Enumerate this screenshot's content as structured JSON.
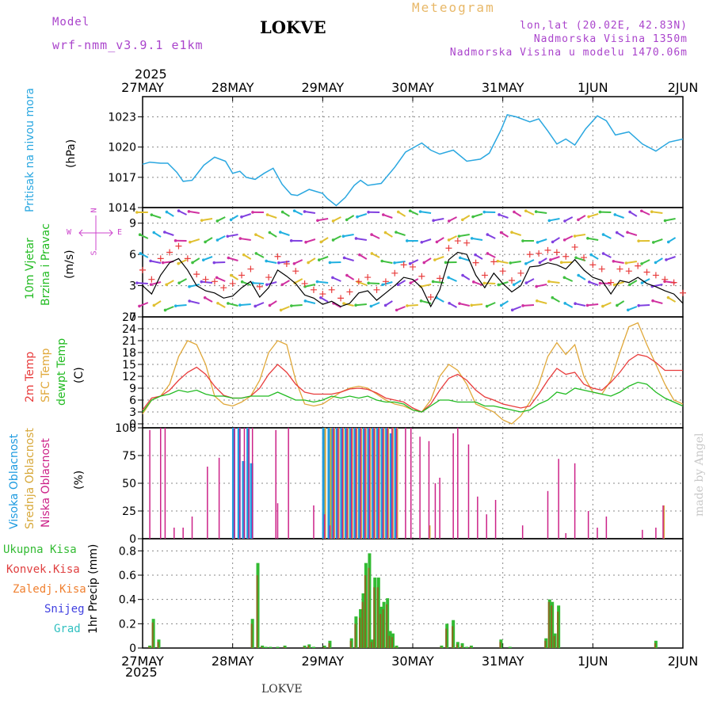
{
  "header": {
    "model_label": "Model",
    "model_name": "wrf-nmm_v3.9.1 e1km",
    "station": "LOKVE",
    "meteogram": "Meteogram",
    "coords": "lon,lat (20.02E, 42.83N)",
    "altitude": "Nadmorska Visina 1350m",
    "model_altitude": "Nadmorska Visina u modelu 1470.06m",
    "footer_station": "LOKVE",
    "watermark": "made by Angel",
    "year": "2025"
  },
  "colors": {
    "pressure": "#2aa7e0",
    "wind_label": "#22bb22",
    "temp2m": "#e83c3c",
    "sfc": "#e0a83a",
    "dew": "#22bb22",
    "high": "#1e9be0",
    "mid": "#d7a83a",
    "low": "#cc2288",
    "precip": "#33bb33",
    "conv": "#e04040",
    "freeze": "#f08030",
    "snow": "#4040e0",
    "grad": "#30c0c0",
    "compass": "#cc44cc"
  },
  "x_axis": {
    "ticks": [
      "27MAY",
      "28MAY",
      "29MAY",
      "30MAY",
      "31MAY",
      "1JUN",
      "2JUN"
    ]
  },
  "panels": {
    "pressure": {
      "label1": "Pritisak na nivou mora",
      "unit": "(hPa)"
    },
    "wind": {
      "label1": "10m Vjetar",
      "label2": "Brzina i Pravac",
      "unit": "(m/s)",
      "compass_top": "N",
      "compass_w": "W",
      "compass_e": "E",
      "compass_bottom": "S"
    },
    "temp": {
      "label1": "2m Temp",
      "label2": "SFC Temp",
      "label3": "dewpt Temp",
      "unit": "(C)"
    },
    "cloud": {
      "label1": "Visoka Oblacnost",
      "label2": "Srednja Oblacnost",
      "label3": "Niska Oblacnost",
      "unit": "(%)"
    },
    "precip": {
      "labels": [
        "Ukupna Kisa",
        "Konvek.Kisa",
        "Zaledj.Kisa",
        "Snijeg",
        "Grad"
      ],
      "unit": "1hr Precip (mm)"
    }
  },
  "chart_data": [
    {
      "type": "line",
      "ylabel": "(hPa)",
      "ylim": [
        1014,
        1025
      ],
      "yticks": [
        1014,
        1017,
        1020,
        1023
      ],
      "x": [
        0,
        0.08,
        0.2,
        0.28,
        0.38,
        0.45,
        0.55,
        0.68,
        0.8,
        0.92,
        1.0,
        1.08,
        1.15,
        1.25,
        1.35,
        1.45,
        1.55,
        1.65,
        1.72,
        1.85,
        2.0,
        2.05,
        2.15,
        2.25,
        2.35,
        2.42,
        2.5,
        2.65,
        2.8,
        2.92,
        3.0,
        3.1,
        3.2,
        3.3,
        3.45,
        3.6,
        3.75,
        3.85,
        3.98,
        4.05,
        4.15,
        4.3,
        4.4,
        4.5,
        4.6,
        4.7,
        4.8,
        4.92,
        5.05,
        5.15,
        5.25,
        5.4,
        5.55,
        5.7,
        5.85,
        6.0
      ],
      "series": [
        {
          "values": [
            1018.3,
            1018.5,
            1018.4,
            1018.4,
            1017.5,
            1016.6,
            1016.7,
            1018.2,
            1019.0,
            1018.6,
            1017.4,
            1017.6,
            1017.0,
            1016.8,
            1017.4,
            1017.9,
            1016.3,
            1015.3,
            1015.2,
            1015.8,
            1015.4,
            1014.9,
            1014.2,
            1015.0,
            1016.2,
            1016.7,
            1016.2,
            1016.4,
            1018.0,
            1019.5,
            1019.9,
            1020.4,
            1019.7,
            1019.3,
            1019.7,
            1018.6,
            1018.8,
            1019.4,
            1021.7,
            1023.2,
            1023.0,
            1022.5,
            1022.8,
            1021.6,
            1020.3,
            1020.8,
            1020.2,
            1021.8,
            1023.1,
            1022.6,
            1021.2,
            1021.5,
            1020.3,
            1019.6,
            1020.5,
            1020.8
          ]
        }
      ]
    },
    {
      "type": "line",
      "ylabel": "(m/s)",
      "ylim": [
        0,
        10.5
      ],
      "yticks": [
        0,
        3,
        6,
        9
      ],
      "x": [
        0,
        0.1,
        0.2,
        0.3,
        0.4,
        0.5,
        0.6,
        0.7,
        0.8,
        0.9,
        1.0,
        1.1,
        1.2,
        1.3,
        1.4,
        1.5,
        1.6,
        1.7,
        1.8,
        1.9,
        2.0,
        2.1,
        2.2,
        2.3,
        2.4,
        2.5,
        2.6,
        2.7,
        2.8,
        2.9,
        3.0,
        3.1,
        3.2,
        3.3,
        3.4,
        3.5,
        3.6,
        3.7,
        3.8,
        3.9,
        4.0,
        4.1,
        4.2,
        4.3,
        4.4,
        4.5,
        4.6,
        4.7,
        4.8,
        4.9,
        5.0,
        5.1,
        5.2,
        5.3,
        5.4,
        5.5,
        5.6,
        5.7,
        5.8,
        5.9,
        6.0
      ],
      "series": [
        {
          "values": [
            3,
            2.2,
            4,
            5.2,
            5.6,
            4.5,
            3,
            2.5,
            2.3,
            1.8,
            2,
            2.8,
            3.4,
            1.9,
            2.8,
            4.5,
            3.9,
            3.2,
            2.1,
            1.8,
            1.2,
            1.5,
            1.0,
            1.3,
            2.3,
            2.5,
            1.6,
            2.3,
            3.0,
            3.8,
            3.6,
            2.8,
            1.0,
            2.6,
            5.5,
            6.2,
            6.0,
            4.0,
            2.8,
            4.2,
            3.2,
            2.4,
            3.0,
            4.8,
            4.9,
            5.2,
            5.0,
            4.6,
            5.5,
            4.5,
            3.8,
            3.5,
            2.2,
            3.5,
            3.3,
            3.8,
            3.2,
            2.9,
            2.5,
            2.2,
            1.3
          ]
        },
        {
          "values": [
            4.5,
            3.6,
            5.6,
            6.2,
            6.8,
            5.6,
            4.1,
            3.6,
            3.4,
            2.8,
            3.2,
            4.0,
            4.6,
            2.9,
            3.8,
            5.8,
            5.1,
            4.4,
            3.2,
            2.6,
            2.2,
            2.6,
            1.8,
            2.4,
            3.4,
            3.8,
            2.6,
            3.4,
            4.2,
            5.0,
            4.8,
            3.9,
            1.9,
            3.7,
            6.6,
            7.3,
            7.1,
            5.2,
            4.0,
            5.3,
            4.4,
            3.5,
            4.2,
            6.0,
            6.1,
            6.4,
            6.2,
            5.8,
            6.7,
            5.7,
            5.0,
            4.6,
            3.3,
            4.6,
            4.4,
            4.9,
            4.3,
            4.0,
            3.6,
            3.3,
            2.3
          ]
        }
      ]
    },
    {
      "type": "line",
      "ylabel": "(C)",
      "ylim": [
        -1,
        27
      ],
      "yticks": [
        0,
        3,
        6,
        9,
        12,
        15,
        18,
        21,
        24,
        27
      ],
      "x": [
        0,
        0.1,
        0.2,
        0.3,
        0.4,
        0.5,
        0.6,
        0.7,
        0.8,
        0.9,
        1.0,
        1.1,
        1.2,
        1.3,
        1.4,
        1.5,
        1.6,
        1.7,
        1.8,
        1.9,
        2.0,
        2.1,
        2.2,
        2.3,
        2.4,
        2.5,
        2.6,
        2.7,
        2.8,
        2.9,
        3.0,
        3.1,
        3.2,
        3.3,
        3.4,
        3.5,
        3.6,
        3.7,
        3.8,
        3.9,
        4.0,
        4.1,
        4.2,
        4.3,
        4.4,
        4.5,
        4.6,
        4.7,
        4.8,
        4.9,
        5.0,
        5.1,
        5.2,
        5.3,
        5.4,
        5.5,
        5.6,
        5.7,
        5.8,
        5.9,
        6.0
      ],
      "series": [
        {
          "values": [
            3.5,
            6.5,
            7,
            8.5,
            11,
            13,
            14.3,
            12.5,
            9.5,
            7.2,
            6.5,
            6.5,
            7,
            9,
            12.5,
            15,
            13,
            10,
            8,
            7.5,
            7.5,
            7.5,
            8,
            8.8,
            9,
            8.7,
            7.8,
            6.5,
            6,
            5.5,
            4,
            3,
            5,
            8.5,
            11.5,
            12.5,
            11,
            8.5,
            6.8,
            6,
            5,
            4.5,
            4,
            4.5,
            7.5,
            11,
            14,
            12.5,
            13,
            10,
            9,
            8.5,
            10.5,
            13,
            16,
            17.5,
            17,
            15.5,
            13.5,
            13.5,
            13.5
          ]
        },
        {
          "values": [
            2.5,
            6,
            7,
            10,
            17,
            21,
            20,
            15,
            7,
            5,
            4.5,
            5.5,
            7,
            11,
            18,
            21,
            20,
            11,
            5,
            4.5,
            5,
            6.5,
            8,
            9,
            9.5,
            9,
            7.5,
            6,
            5,
            4.5,
            3.5,
            3,
            6,
            12,
            15,
            13.5,
            10,
            5,
            4,
            3,
            1,
            0,
            2,
            5.5,
            10,
            17,
            20.5,
            17.5,
            20,
            12,
            8,
            7.5,
            11,
            18,
            24.5,
            25.5,
            20,
            15,
            10,
            6,
            5
          ]
        },
        {
          "values": [
            3,
            6,
            7,
            7.5,
            8.5,
            8,
            8.5,
            7.5,
            7,
            7,
            6.5,
            6.5,
            7,
            7,
            7,
            8,
            7,
            6,
            6,
            5.5,
            6,
            7,
            6.5,
            7,
            6.5,
            7,
            6,
            5.5,
            5.5,
            5,
            3.5,
            3,
            4.5,
            6,
            6,
            5.5,
            5.5,
            5.5,
            4.5,
            4.5,
            4,
            3.5,
            3,
            3.5,
            5,
            6,
            8,
            7.5,
            9,
            8.5,
            8,
            7.5,
            7,
            8,
            9.5,
            10.5,
            10,
            8,
            6.5,
            5.5,
            4.5
          ]
        }
      ]
    },
    {
      "type": "bar",
      "ylabel": "(%)",
      "ylim": [
        0,
        100
      ],
      "yticks": [
        0,
        25,
        50,
        75,
        100
      ],
      "x": [
        0.08,
        0.2,
        0.25,
        0.35,
        0.45,
        0.55,
        0.72,
        0.85,
        1.02,
        1.08,
        1.13,
        1.18,
        1.22,
        1.48,
        1.5,
        1.62,
        1.9,
        2.02,
        2.08,
        2.12,
        2.17,
        2.22,
        2.27,
        2.32,
        2.37,
        2.42,
        2.47,
        2.52,
        2.57,
        2.62,
        2.67,
        2.72,
        2.77,
        2.82,
        2.92,
        2.98,
        3.08,
        3.18,
        3.25,
        3.3,
        3.45,
        3.5,
        3.62,
        3.72,
        3.82,
        3.92,
        4.08,
        4.22,
        4.5,
        4.62,
        4.7,
        4.8,
        4.95,
        5.05,
        5.15,
        5.55,
        5.7,
        5.78
      ],
      "series": [
        {
          "name": "Visoka Oblacnost",
          "values": [
            0,
            0,
            0,
            0,
            0,
            0,
            0,
            0,
            100,
            100,
            70,
            100,
            68,
            0,
            0,
            0,
            0,
            100,
            100,
            100,
            100,
            100,
            100,
            100,
            100,
            100,
            100,
            100,
            100,
            100,
            100,
            100,
            95,
            100,
            0,
            0,
            0,
            0,
            0,
            0,
            0,
            0,
            0,
            0,
            0,
            0,
            0,
            0,
            0,
            0,
            0,
            0,
            0,
            0,
            0,
            0,
            0,
            0
          ]
        },
        {
          "name": "Srednja Oblacnost",
          "values": [
            0,
            0,
            0,
            0,
            0,
            0,
            0,
            0,
            0,
            0,
            0,
            0,
            0,
            0,
            0,
            0,
            0,
            100,
            100,
            100,
            100,
            100,
            100,
            100,
            100,
            100,
            100,
            100,
            100,
            100,
            100,
            100,
            100,
            100,
            0,
            0,
            0,
            12,
            0,
            0,
            0,
            0,
            0,
            0,
            0,
            0,
            0,
            0,
            0,
            0,
            0,
            0,
            0,
            0,
            0,
            0,
            0,
            30
          ]
        },
        {
          "name": "Niska Oblacnost",
          "values": [
            98,
            100,
            100,
            10,
            10,
            20,
            65,
            73,
            100,
            100,
            100,
            100,
            100,
            98,
            32,
            100,
            30,
            22,
            12,
            100,
            100,
            100,
            100,
            100,
            100,
            100,
            100,
            100,
            100,
            100,
            100,
            100,
            100,
            100,
            100,
            100,
            92,
            88,
            50,
            55,
            95,
            100,
            85,
            38,
            22,
            35,
            0,
            12,
            43,
            72,
            5,
            68,
            25,
            10,
            20,
            8,
            10,
            30
          ]
        }
      ]
    },
    {
      "type": "bar",
      "ylabel": "1hr Precip (mm)",
      "ylim": [
        0,
        0.9
      ],
      "yticks": [
        0,
        0.2,
        0.4,
        0.6,
        0.8
      ],
      "x": [
        0.08,
        0.12,
        0.18,
        0.22,
        1.22,
        1.28,
        1.33,
        1.37,
        1.42,
        1.5,
        1.58,
        1.8,
        1.85,
        1.9,
        2.02,
        2.08,
        2.32,
        2.37,
        2.42,
        2.45,
        2.48,
        2.52,
        2.55,
        2.58,
        2.62,
        2.65,
        2.68,
        2.72,
        2.75,
        2.78,
        2.82,
        3.32,
        3.38,
        3.45,
        3.5,
        3.55,
        3.6,
        3.65,
        3.98,
        4.08,
        4.48,
        4.52,
        4.55,
        4.58,
        4.62,
        5.7
      ],
      "series": [
        {
          "name": "Ukupna Kisa",
          "values": [
            0.02,
            0.24,
            0.07,
            0,
            0.24,
            0.7,
            0.02,
            0.01,
            0.01,
            0.01,
            0.02,
            0.02,
            0.03,
            0.01,
            0.02,
            0.06,
            0.08,
            0.26,
            0.32,
            0.45,
            0.7,
            0.78,
            0.07,
            0.58,
            0.58,
            0.34,
            0.38,
            0.41,
            0.14,
            0.12,
            0.02,
            0.02,
            0.2,
            0.23,
            0.05,
            0.04,
            0.01,
            0.02,
            0.07,
            0.01,
            0.08,
            0.4,
            0.38,
            0.12,
            0.35,
            0.06
          ]
        },
        {
          "name": "Konvek.Kisa",
          "values": [
            0.01,
            0.21,
            0.05,
            0,
            0.2,
            0.6,
            0.01,
            0,
            0,
            0,
            0.01,
            0.01,
            0.02,
            0,
            0.01,
            0.04,
            0.06,
            0.2,
            0.25,
            0.38,
            0.6,
            0.66,
            0.05,
            0.5,
            0.5,
            0.28,
            0.32,
            0.36,
            0.1,
            0.09,
            0.01,
            0.01,
            0.16,
            0.18,
            0.03,
            0.02,
            0,
            0.01,
            0.05,
            0,
            0.06,
            0.38,
            0.35,
            0.1,
            0.3,
            0.04
          ]
        }
      ]
    }
  ]
}
